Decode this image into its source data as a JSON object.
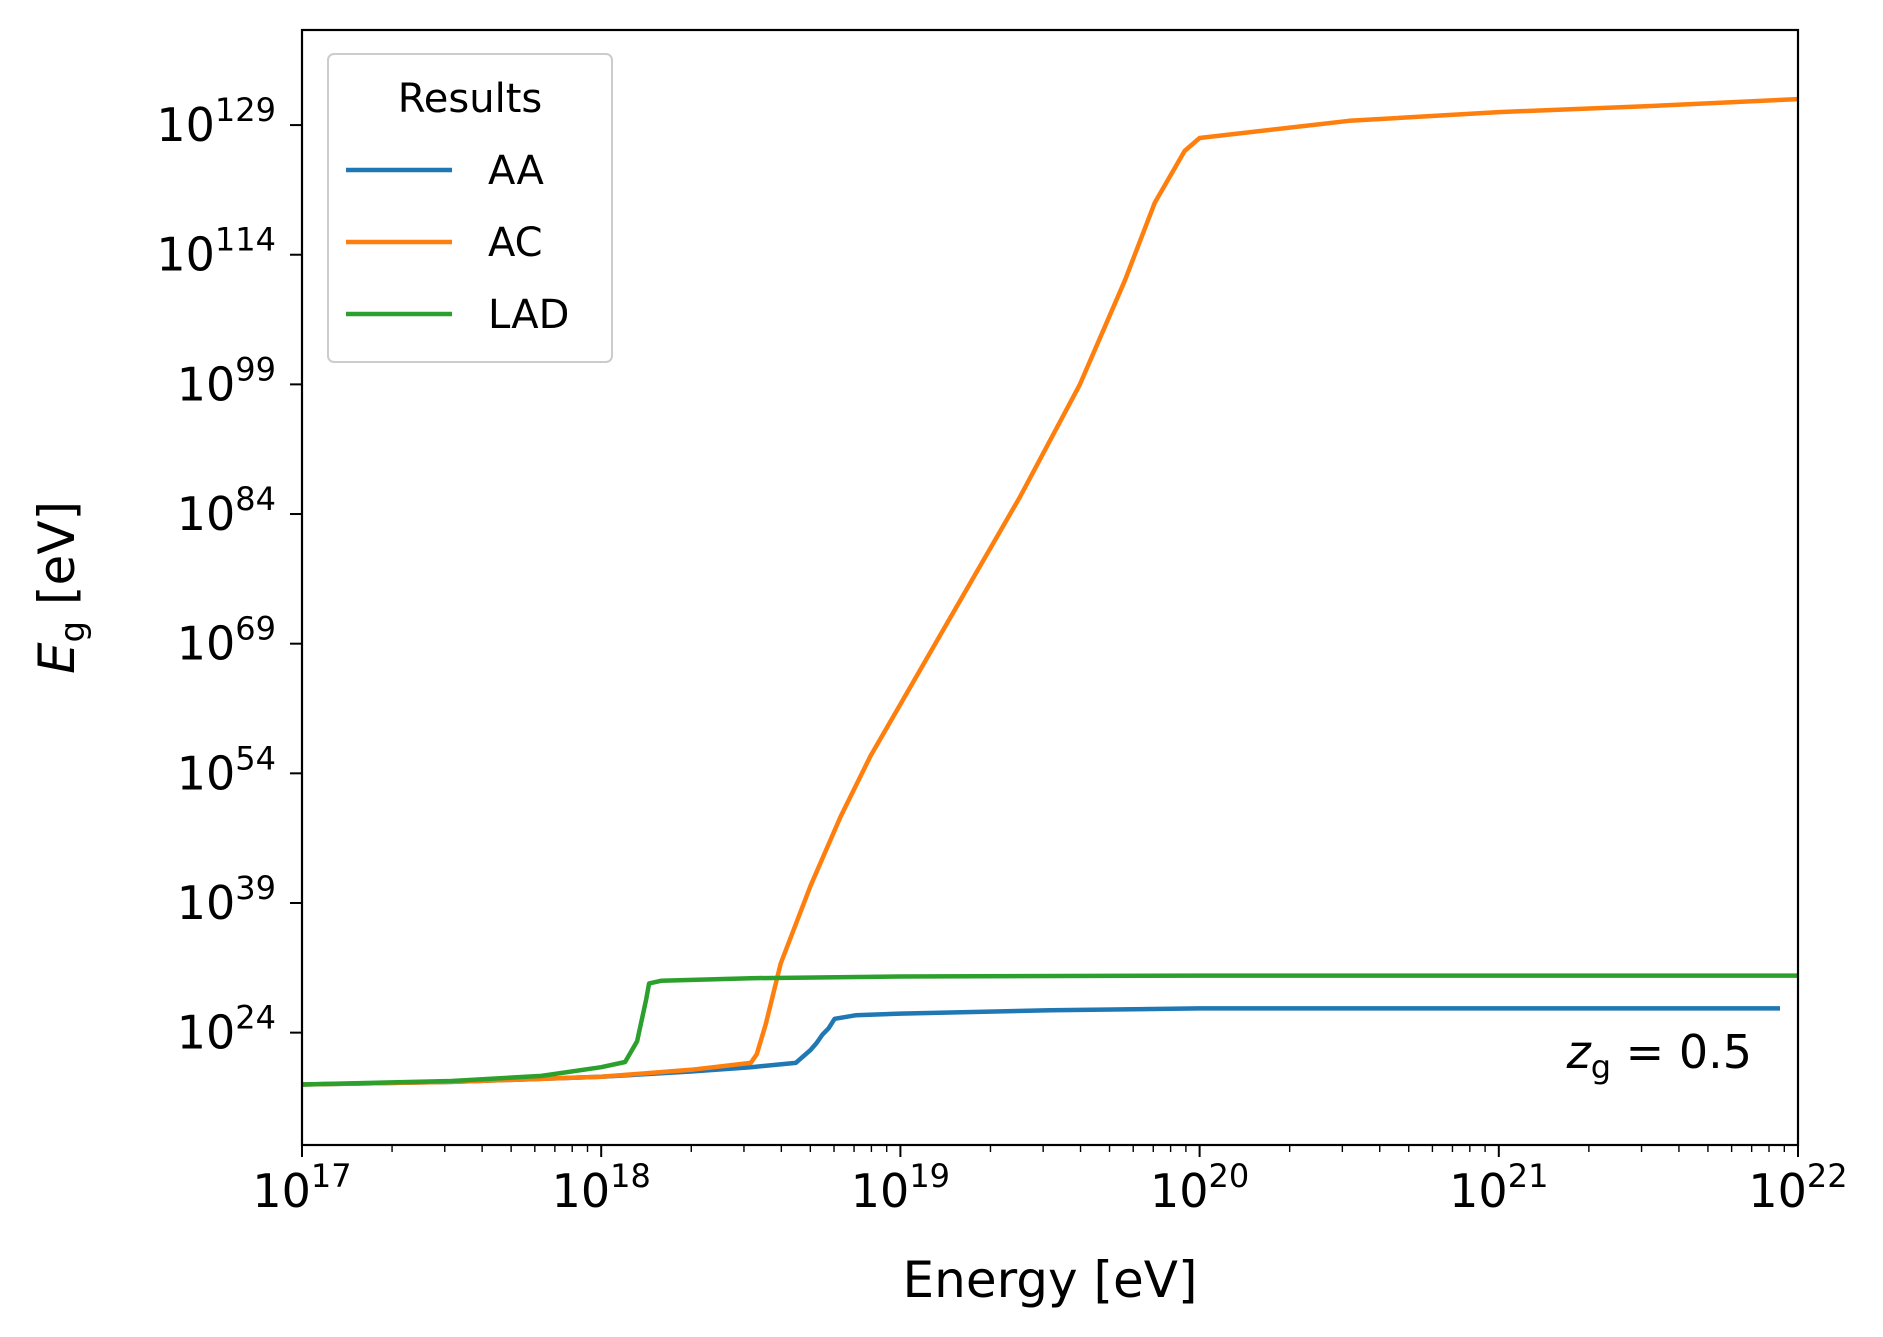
{
  "chart_data": {
    "type": "line",
    "xscale": "log",
    "yscale": "log",
    "xlim": [
      1e+17,
      1e+22
    ],
    "ylim_log10": [
      11,
      140
    ],
    "xlabel": "Energy [eV]",
    "ylabel": "E_g [eV]",
    "ylabel_parts": {
      "main": "E",
      "sub": "g",
      "unit": " [eV]"
    },
    "xticks": [
      {
        "base": "10",
        "exp": "17",
        "log10": 17
      },
      {
        "base": "10",
        "exp": "18",
        "log10": 18
      },
      {
        "base": "10",
        "exp": "19",
        "log10": 19
      },
      {
        "base": "10",
        "exp": "20",
        "log10": 20
      },
      {
        "base": "10",
        "exp": "21",
        "log10": 21
      },
      {
        "base": "10",
        "exp": "22",
        "log10": 22
      }
    ],
    "yticks": [
      {
        "base": "10",
        "exp": "24",
        "log10": 24
      },
      {
        "base": "10",
        "exp": "39",
        "log10": 39
      },
      {
        "base": "10",
        "exp": "54",
        "log10": 54
      },
      {
        "base": "10",
        "exp": "69",
        "log10": 69
      },
      {
        "base": "10",
        "exp": "84",
        "log10": 84
      },
      {
        "base": "10",
        "exp": "99",
        "log10": 99
      },
      {
        "base": "10",
        "exp": "114",
        "log10": 114
      },
      {
        "base": "10",
        "exp": "129",
        "log10": 129
      }
    ],
    "legend": {
      "title": "Results",
      "position": "upper-left"
    },
    "annotation": {
      "main": "z",
      "sub": "g",
      "rest": " = 0.5",
      "position": "lower-right"
    },
    "grid": false,
    "series": [
      {
        "name": "AA",
        "color": "#1f77b4",
        "x_log10": [
          17.0,
          17.5,
          18.0,
          18.3,
          18.5,
          18.65,
          18.7,
          18.72,
          18.74,
          18.76,
          18.78,
          18.85,
          19.0,
          19.5,
          20.0,
          21.0,
          21.94
        ],
        "y_log10": [
          18.0,
          18.3,
          18.9,
          19.5,
          20.0,
          20.5,
          22.0,
          22.8,
          23.8,
          24.5,
          25.6,
          26.0,
          26.2,
          26.6,
          26.8,
          26.8,
          26.8
        ]
      },
      {
        "name": "AC",
        "color": "#ff7f0e",
        "x_log10": [
          17.0,
          17.5,
          18.0,
          18.3,
          18.5,
          18.52,
          18.55,
          18.6,
          18.7,
          18.8,
          18.9,
          19.0,
          19.2,
          19.4,
          19.6,
          19.75,
          19.85,
          19.95,
          20.0,
          20.5,
          21.0,
          21.5,
          22.0
        ],
        "y_log10": [
          18.0,
          18.3,
          18.9,
          19.7,
          20.5,
          21.5,
          25.0,
          32.0,
          41.0,
          49.0,
          56.0,
          62.0,
          74.0,
          86.0,
          99.0,
          111.0,
          120.0,
          126.0,
          127.5,
          129.5,
          130.5,
          131.2,
          132.0
        ]
      },
      {
        "name": "LAD",
        "color": "#2ca02c",
        "x_log10": [
          17.0,
          17.5,
          17.8,
          18.0,
          18.08,
          18.12,
          18.15,
          18.16,
          18.2,
          18.5,
          19.0,
          20.0,
          21.0,
          22.0
        ],
        "y_log10": [
          18.0,
          18.4,
          19.0,
          20.0,
          20.6,
          23.0,
          27.8,
          29.7,
          30.0,
          30.3,
          30.5,
          30.6,
          30.6,
          30.6
        ]
      }
    ]
  }
}
